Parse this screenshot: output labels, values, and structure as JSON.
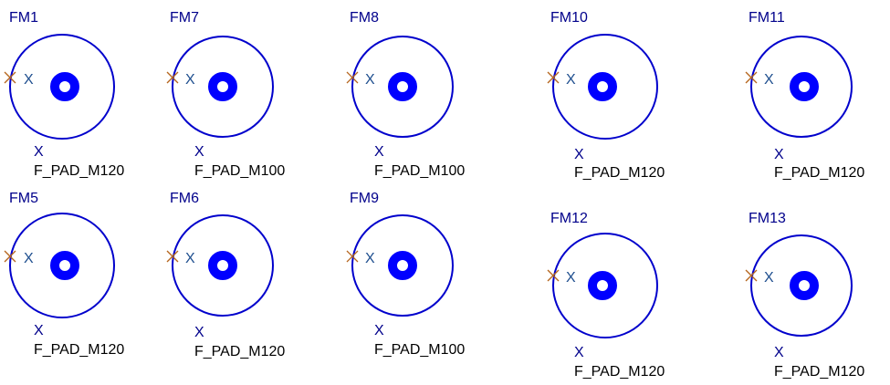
{
  "colors": {
    "background": "#ffffff",
    "refdes": "#00008b",
    "outline": "#0000cc",
    "pad": "#0000ff",
    "origin_marker": "#b5651d",
    "pin_label": "#1f4f8f",
    "value_x": "#00008b",
    "footprint": "#000000"
  },
  "fiducials": [
    {
      "refdes": "FM1",
      "pin_label": "X",
      "value_label": "X",
      "footprint": "F_PAD_M120"
    },
    {
      "refdes": "FM7",
      "pin_label": "X",
      "value_label": "X",
      "footprint": "F_PAD_M100"
    },
    {
      "refdes": "FM8",
      "pin_label": "X",
      "value_label": "X",
      "footprint": "F_PAD_M100"
    },
    {
      "refdes": "FM10",
      "pin_label": "X",
      "value_label": "X",
      "footprint": "F_PAD_M120"
    },
    {
      "refdes": "FM11",
      "pin_label": "X",
      "value_label": "X",
      "footprint": "F_PAD_M120"
    },
    {
      "refdes": "FM5",
      "pin_label": "X",
      "value_label": "X",
      "footprint": "F_PAD_M120"
    },
    {
      "refdes": "FM6",
      "pin_label": "X",
      "value_label": "X",
      "footprint": "F_PAD_M120"
    },
    {
      "refdes": "FM9",
      "pin_label": "X",
      "value_label": "X",
      "footprint": "F_PAD_M100"
    },
    {
      "refdes": "FM12",
      "pin_label": "X",
      "value_label": "X",
      "footprint": "F_PAD_M120"
    },
    {
      "refdes": "FM13",
      "pin_label": "X",
      "value_label": "X",
      "footprint": "F_PAD_M120"
    }
  ]
}
